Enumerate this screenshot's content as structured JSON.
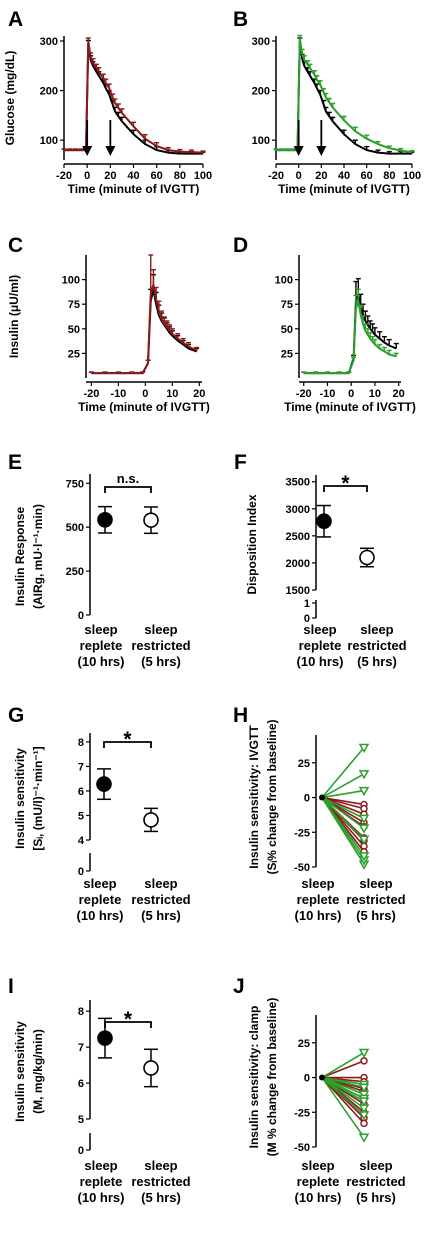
{
  "colors": {
    "black": "#000000",
    "red": "#8b1a1a",
    "green": "#2ca02c"
  },
  "chart_data": [
    {
      "panel": "A",
      "type": "line",
      "ylabel": "Glucose (mg/dL)",
      "xlabel": "Time (minute of IVGTT)",
      "xlim": [
        -20,
        100
      ],
      "ylim": [
        60,
        310
      ],
      "xticks": [
        "-20",
        "0",
        "20",
        "40",
        "60",
        "80",
        "100"
      ],
      "yticks": [
        "100",
        "200",
        "300"
      ],
      "arrows_at_x": [
        0,
        20
      ],
      "series": [
        {
          "color": "black",
          "x": [
            -20,
            -15,
            -10,
            -5,
            -1,
            1,
            3,
            5,
            8,
            10,
            14,
            16,
            19,
            22,
            24,
            27,
            30,
            40,
            50,
            60,
            70,
            80,
            90,
            100
          ],
          "y": [
            80,
            80,
            80,
            80,
            80,
            295,
            262,
            250,
            238,
            230,
            215,
            205,
            192,
            172,
            158,
            148,
            138,
            112,
            92,
            80,
            75,
            73,
            73,
            73
          ],
          "err": [
            2,
            2,
            2,
            2,
            2,
            6,
            8,
            8,
            8,
            8,
            8,
            8,
            8,
            8,
            8,
            8,
            8,
            8,
            8,
            7,
            5,
            4,
            4,
            3
          ]
        },
        {
          "color": "red",
          "x": [
            -20,
            -15,
            -10,
            -5,
            -1,
            1,
            3,
            5,
            8,
            10,
            14,
            16,
            19,
            22,
            24,
            27,
            30,
            40,
            50,
            60,
            70,
            80,
            90,
            100
          ],
          "y": [
            80,
            80,
            80,
            80,
            80,
            300,
            268,
            256,
            245,
            238,
            225,
            215,
            205,
            185,
            175,
            165,
            155,
            128,
            103,
            88,
            80,
            77,
            76,
            75
          ],
          "err": [
            2,
            2,
            2,
            2,
            2,
            6,
            8,
            8,
            8,
            8,
            8,
            8,
            8,
            8,
            8,
            8,
            8,
            8,
            8,
            7,
            5,
            4,
            4,
            3
          ]
        }
      ]
    },
    {
      "panel": "B",
      "type": "line",
      "ylabel": "",
      "xlabel": "Time (minute of IVGTT)",
      "xlim": [
        -20,
        100
      ],
      "ylim": [
        60,
        310
      ],
      "xticks": [
        "-20",
        "0",
        "20",
        "40",
        "60",
        "80",
        "100"
      ],
      "yticks": [
        "100",
        "200",
        "300"
      ],
      "arrows_at_x": [
        0,
        20
      ],
      "series": [
        {
          "color": "black",
          "x": [
            -20,
            -15,
            -10,
            -5,
            -1,
            1,
            3,
            5,
            8,
            10,
            14,
            16,
            19,
            22,
            24,
            27,
            30,
            40,
            50,
            60,
            70,
            80,
            90,
            100
          ],
          "y": [
            80,
            80,
            80,
            80,
            80,
            300,
            265,
            250,
            238,
            230,
            215,
            205,
            192,
            172,
            158,
            148,
            138,
            112,
            92,
            80,
            75,
            73,
            73,
            73
          ],
          "err": [
            2,
            2,
            2,
            2,
            2,
            6,
            8,
            8,
            8,
            8,
            8,
            8,
            8,
            8,
            8,
            8,
            8,
            8,
            8,
            7,
            5,
            4,
            4,
            3
          ]
        },
        {
          "color": "green",
          "x": [
            -20,
            -15,
            -10,
            -5,
            -1,
            1,
            3,
            5,
            8,
            10,
            14,
            16,
            19,
            22,
            24,
            27,
            30,
            40,
            50,
            60,
            70,
            80,
            90,
            100
          ],
          "y": [
            80,
            80,
            80,
            80,
            80,
            305,
            275,
            262,
            252,
            245,
            232,
            222,
            212,
            196,
            186,
            176,
            166,
            140,
            118,
            103,
            92,
            84,
            79,
            76
          ],
          "err": [
            2,
            2,
            2,
            2,
            2,
            6,
            8,
            8,
            8,
            8,
            8,
            8,
            8,
            8,
            8,
            8,
            8,
            8,
            8,
            7,
            5,
            4,
            4,
            3
          ]
        }
      ]
    },
    {
      "panel": "C",
      "type": "line",
      "ylabel": "Insulin (μU/ml)",
      "xlabel": "Time (minute of IVGTT)",
      "xlim": [
        -22,
        21
      ],
      "ylim": [
        0,
        125
      ],
      "xticks": [
        "-20",
        "-10",
        "0",
        "10",
        "20"
      ],
      "yticks": [
        "25",
        "50",
        "75",
        "100"
      ],
      "series": [
        {
          "color": "black",
          "x": [
            -20,
            -15,
            -10,
            -5,
            -1,
            1,
            2,
            3,
            4,
            5,
            6,
            7,
            8,
            9,
            10,
            12,
            14,
            16,
            19
          ],
          "y": [
            5,
            5,
            5,
            5,
            5,
            15,
            78,
            90,
            75,
            64,
            58,
            54,
            50,
            46,
            43,
            38,
            34,
            30,
            27
          ],
          "err": [
            1,
            1,
            1,
            1,
            1,
            3,
            12,
            15,
            12,
            10,
            8,
            7,
            6,
            6,
            5,
            5,
            4,
            4,
            3
          ]
        },
        {
          "color": "red",
          "x": [
            -20,
            -15,
            -10,
            -5,
            -1,
            1,
            2,
            3,
            4,
            5,
            6,
            7,
            8,
            9,
            10,
            12,
            14,
            16,
            19
          ],
          "y": [
            5,
            5,
            5,
            5,
            5,
            15,
            85,
            95,
            80,
            68,
            60,
            55,
            52,
            48,
            45,
            40,
            36,
            32,
            28
          ],
          "err": [
            1,
            1,
            1,
            1,
            1,
            3,
            40,
            15,
            12,
            10,
            8,
            7,
            6,
            6,
            5,
            5,
            4,
            4,
            3
          ]
        }
      ]
    },
    {
      "panel": "D",
      "type": "line",
      "ylabel": "",
      "xlabel": "Time (minute of IVGTT)",
      "xlim": [
        -22,
        21
      ],
      "ylim": [
        0,
        125
      ],
      "xticks": [
        "-20",
        "-10",
        "0",
        "10",
        "20"
      ],
      "yticks": [
        "25",
        "50",
        "75",
        "100"
      ],
      "series": [
        {
          "color": "black",
          "x": [
            -20,
            -15,
            -10,
            -5,
            -1,
            1,
            2,
            3,
            4,
            5,
            6,
            7,
            8,
            9,
            10,
            12,
            14,
            16,
            19
          ],
          "y": [
            5,
            5,
            5,
            5,
            5,
            20,
            78,
            85,
            72,
            64,
            58,
            54,
            50,
            47,
            44,
            40,
            36,
            33,
            30
          ],
          "err": [
            1,
            1,
            1,
            1,
            1,
            3,
            20,
            16,
            13,
            11,
            10,
            9,
            8,
            8,
            7,
            7,
            6,
            6,
            5
          ]
        },
        {
          "color": "green",
          "x": [
            -20,
            -15,
            -10,
            -5,
            -1,
            1,
            2,
            3,
            4,
            5,
            6,
            7,
            8,
            9,
            10,
            12,
            14,
            16,
            19
          ],
          "y": [
            5,
            5,
            5,
            5,
            5,
            18,
            70,
            78,
            64,
            55,
            48,
            44,
            40,
            37,
            34,
            30,
            27,
            24,
            22
          ],
          "err": [
            1,
            1,
            1,
            1,
            1,
            3,
            14,
            12,
            10,
            8,
            7,
            6,
            6,
            5,
            5,
            4,
            4,
            4,
            3
          ]
        }
      ]
    },
    {
      "panel": "E",
      "type": "scatter",
      "ylabel": "Insulin Response",
      "ylabel2": "(AIRg, mU·l⁻¹·min)",
      "categories": [
        "sleep replete (10 hrs)",
        "sleep restricted (5 hrs)"
      ],
      "values": [
        542,
        540
      ],
      "err": [
        75,
        75
      ],
      "ylim": [
        0,
        780
      ],
      "yticks": [
        "0",
        "250",
        "500",
        "750"
      ],
      "significance": "n.s."
    },
    {
      "panel": "F",
      "type": "scatter",
      "ylabel": "Disposition Index",
      "categories": [
        "sleep replete (10 hrs)",
        "sleep restricted (5 hrs)"
      ],
      "values": [
        2770,
        2100
      ],
      "err": [
        290,
        170
      ],
      "ylim": [
        1500,
        3550
      ],
      "yticks": [
        "0",
        "1",
        "1500",
        "2000",
        "2500",
        "3000",
        "3500"
      ],
      "axis_break": true,
      "significance": "*"
    },
    {
      "panel": "G",
      "type": "scatter",
      "ylabel": "Insulin sensitivity",
      "ylabel2": "[Sᵢ, (mU/l)⁻¹·min⁻¹]",
      "categories": [
        "sleep replete (10 hrs)",
        "sleep restricted (5 hrs)"
      ],
      "values": [
        6.28,
        4.82
      ],
      "err": [
        0.62,
        0.47
      ],
      "ylim": [
        4,
        8.2
      ],
      "yticks": [
        "0",
        "4",
        "5",
        "6",
        "7",
        "8"
      ],
      "axis_break": true,
      "significance": "*"
    },
    {
      "panel": "H",
      "type": "line",
      "ylabel": "Insulin sensitivity: IVGTT",
      "ylabel2": "(Sᵢ% change from baseline)",
      "categories": [
        "sleep replete (10 hrs)",
        "sleep restricted (5 hrs)"
      ],
      "ylim": [
        -50,
        45
      ],
      "yticks": [
        "-50",
        "-25",
        "0",
        "25"
      ],
      "end_values_green": [
        36,
        17,
        5,
        -48,
        -45,
        -42,
        -30,
        -22,
        -15
      ],
      "end_values_red": [
        -5,
        -8,
        -12,
        -18,
        -21,
        -29,
        -31,
        -35,
        -39
      ]
    },
    {
      "panel": "I",
      "type": "scatter",
      "ylabel": "Insulin sensitivity",
      "ylabel2": "(M, mg/kg/min)",
      "categories": [
        "sleep replete (10 hrs)",
        "sleep restricted (5 hrs)"
      ],
      "values": [
        7.25,
        6.42
      ],
      "err": [
        0.55,
        0.52
      ],
      "ylim": [
        5,
        8.2
      ],
      "yticks": [
        "0",
        "5",
        "6",
        "7",
        "8"
      ],
      "axis_break": true,
      "significance": "*"
    },
    {
      "panel": "J",
      "type": "line",
      "ylabel": "Insulin sensitivity: clamp",
      "ylabel2": "(M % change from baseline)",
      "categories": [
        "sleep replete (10 hrs)",
        "sleep restricted (5 hrs)"
      ],
      "ylim": [
        -50,
        45
      ],
      "yticks": [
        "-50",
        "-25",
        "0",
        "25"
      ],
      "end_values_green": [
        18,
        -5,
        -7,
        -12,
        -15,
        -17,
        -22,
        -27,
        -43
      ],
      "end_values_red": [
        12,
        0,
        -3,
        -8,
        -10,
        -19,
        -25,
        -29,
        -33
      ]
    }
  ],
  "text": {
    "A": "A",
    "B": "B",
    "C": "C",
    "D": "D",
    "E": "E",
    "F": "F",
    "G": "G",
    "H": "H",
    "I": "I",
    "J": "J",
    "replete": "sleep",
    "replete2": "replete",
    "replete3": "(10 hrs)",
    "restricted": "sleep",
    "restricted2": "restricted",
    "restricted3": "(5 hrs)"
  }
}
